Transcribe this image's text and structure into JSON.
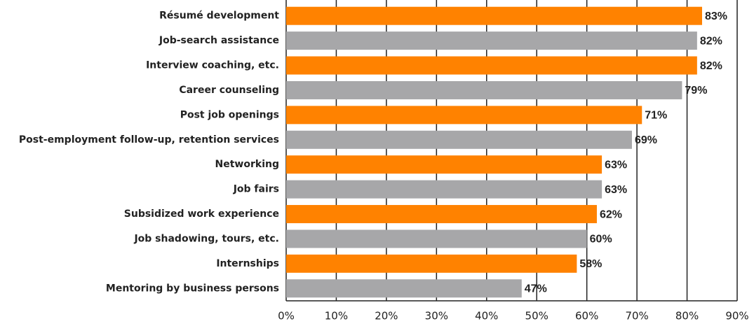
{
  "chart_data": {
    "type": "hbar",
    "categories": [
      "Résumé development",
      "Job-search assistance",
      "Interview coaching, etc.",
      "Career counseling",
      "Post job openings",
      "Post-employment follow-up, retention services",
      "Networking",
      "Job fairs",
      "Subsidized work experience",
      "Job shadowing, tours, etc.",
      "Internships",
      "Mentoring by business persons"
    ],
    "values": [
      83,
      82,
      82,
      79,
      71,
      69,
      63,
      63,
      62,
      60,
      58,
      47
    ],
    "value_labels": [
      "83%",
      "82%",
      "82%",
      "79%",
      "71%",
      "69%",
      "63%",
      "63%",
      "62%",
      "60%",
      "58%",
      "47%"
    ],
    "colors": [
      "#ff8200",
      "#a7a7a9",
      "#ff8200",
      "#a7a7a9",
      "#ff8200",
      "#a7a7a9",
      "#ff8200",
      "#a7a7a9",
      "#ff8200",
      "#a7a7a9",
      "#ff8200",
      "#a7a7a9"
    ],
    "xlim": [
      0,
      90
    ],
    "xticks": [
      {
        "value": 0,
        "label": "0%"
      },
      {
        "value": 10,
        "label": "10%"
      },
      {
        "value": 20,
        "label": "20%"
      },
      {
        "value": 30,
        "label": "30%"
      },
      {
        "value": 40,
        "label": "40%"
      },
      {
        "value": 50,
        "label": "50%"
      },
      {
        "value": 60,
        "label": "60%"
      },
      {
        "value": 70,
        "label": "70%"
      },
      {
        "value": 80,
        "label": "80%"
      },
      {
        "value": 90,
        "label": "90%"
      }
    ],
    "grid": true
  }
}
